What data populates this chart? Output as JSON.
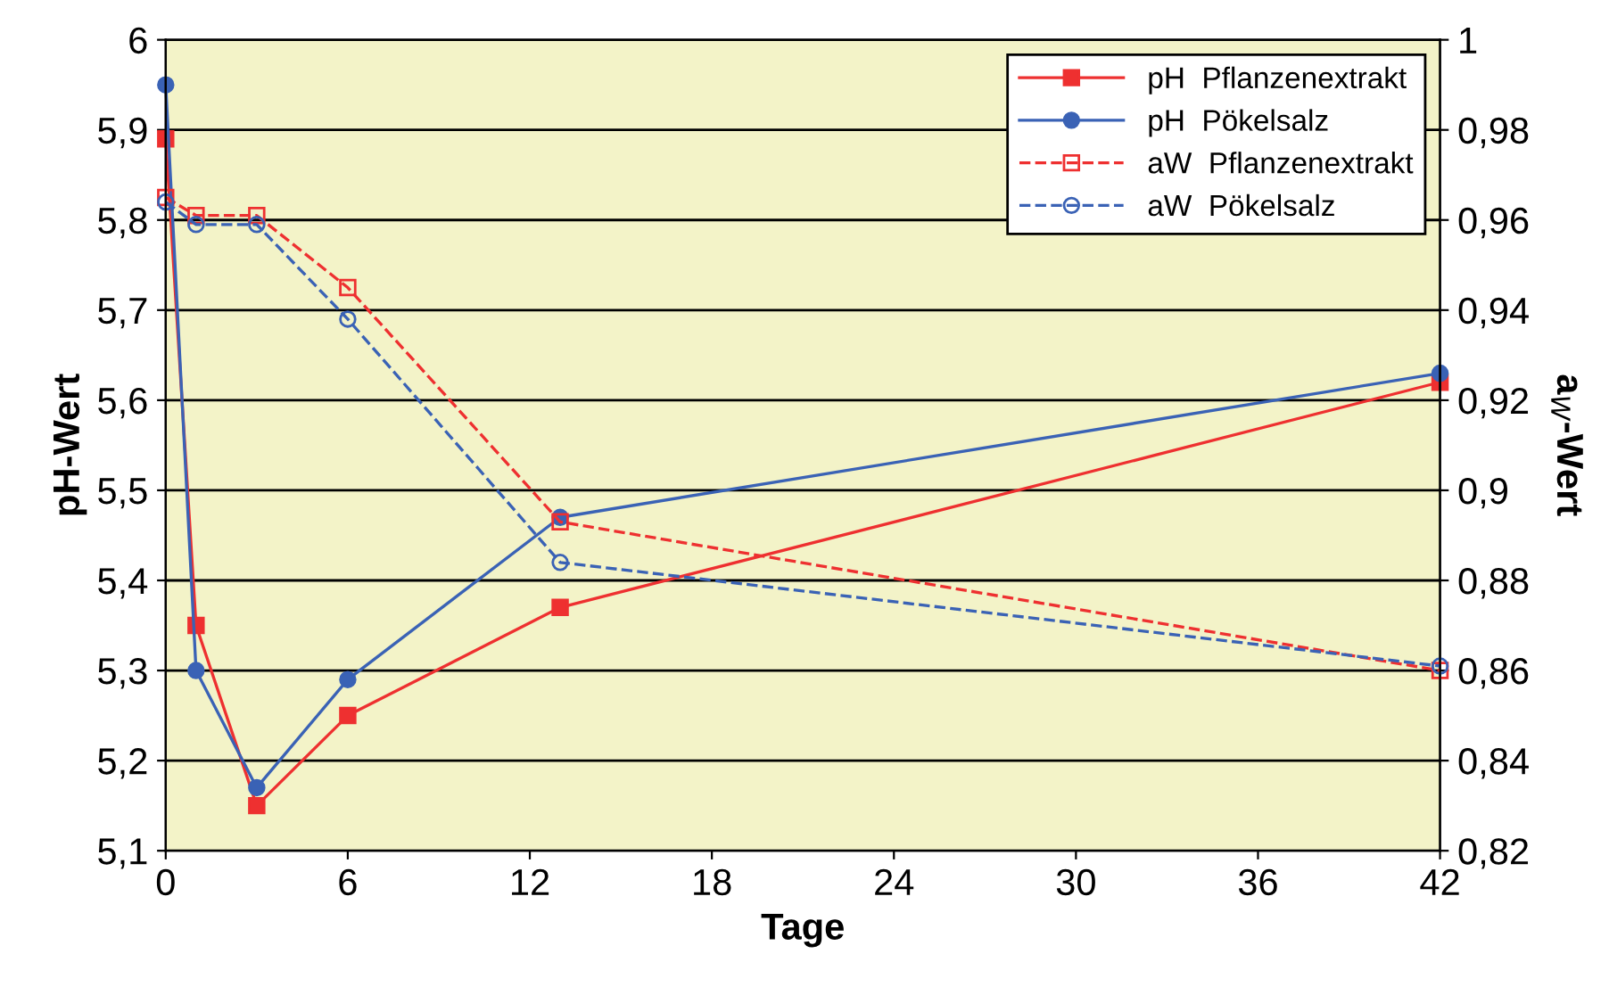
{
  "chart_data": {
    "type": "line",
    "xlabel": "Tage",
    "ylabel": "pH-Wert",
    "y2label": "a$_{W}$-Wert",
    "x": [
      0,
      1,
      3,
      6,
      13,
      42
    ],
    "xlim": [
      0,
      42
    ],
    "xticks": [
      0,
      6,
      12,
      18,
      24,
      30,
      36,
      42
    ],
    "ylim": [
      5.1,
      6
    ],
    "yticks": [
      {
        "value": 5.1,
        "label": "5,1"
      },
      {
        "value": 5.2,
        "label": "5,2"
      },
      {
        "value": 5.3,
        "label": "5,3"
      },
      {
        "value": 5.4,
        "label": "5,4"
      },
      {
        "value": 5.5,
        "label": "5,5"
      },
      {
        "value": 5.6,
        "label": "5,6"
      },
      {
        "value": 5.7,
        "label": "5,7"
      },
      {
        "value": 5.8,
        "label": "5,8"
      },
      {
        "value": 5.9,
        "label": "5,9"
      },
      6
    ],
    "y2lim": [
      0.82,
      1
    ],
    "y2ticks": [
      {
        "value": 0.82,
        "label": "0,82"
      },
      {
        "value": 0.84,
        "label": "0,84"
      },
      {
        "value": 0.86,
        "label": "0,86"
      },
      {
        "value": 0.88,
        "label": "0,88"
      },
      {
        "value": 0.9,
        "label": "0,9"
      },
      {
        "value": 0.92,
        "label": "0,92"
      },
      {
        "value": 0.94,
        "label": "0,94"
      },
      {
        "value": 0.96,
        "label": "0,96"
      },
      {
        "value": 0.98,
        "label": "0,98"
      },
      1
    ],
    "grid": "y",
    "legend": "top right",
    "series": [
      {
        "name": "pH  Pflanzenextrakt",
        "color": "#ee3030",
        "marker": "square",
        "line_style": "solid",
        "values": [
          5.89,
          5.35,
          5.15,
          5.25,
          5.37,
          5.62
        ]
      },
      {
        "name": "pH  Pökelsalz",
        "color": "#3a62b5",
        "marker": "circle",
        "line_style": "solid",
        "values": [
          5.95,
          5.3,
          5.17,
          5.29,
          5.47,
          5.63
        ]
      },
      {
        "name": "aW  Pflanzenextrakt",
        "color": "#ee3030",
        "marker": "square",
        "line_style": "dashed",
        "axis": "y2",
        "values": [
          0.965,
          0.961,
          0.961,
          0.945,
          0.893,
          0.86
        ]
      },
      {
        "name": "aW  Pökelsalz",
        "color": "#3a62b5",
        "marker": "circle",
        "line_style": "dashed",
        "axis": "y2",
        "values": [
          0.964,
          0.959,
          0.959,
          0.938,
          0.884,
          0.861
        ]
      }
    ]
  }
}
